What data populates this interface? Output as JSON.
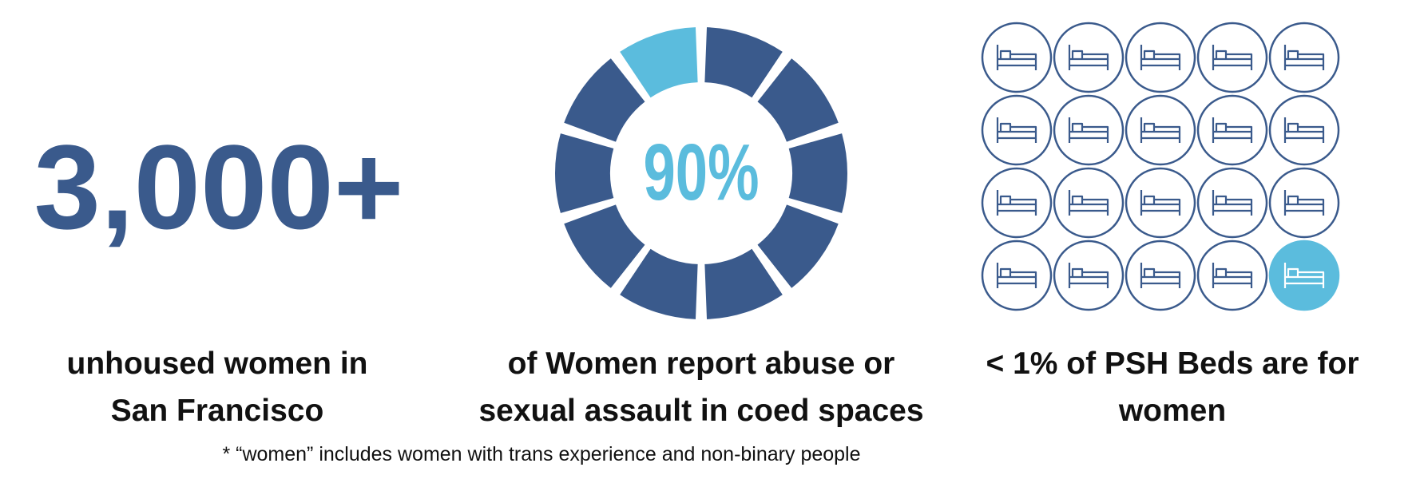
{
  "stats": [
    {
      "figure": "3,000+",
      "caption_lines": [
        "unhoused women in",
        "San Francisco"
      ]
    },
    {
      "figure": "90%",
      "caption_lines": [
        "of Women report abuse or",
        "sexual assault in coed spaces"
      ]
    },
    {
      "caption_lines": [
        "< 1% of PSH Beds are for",
        "women"
      ]
    }
  ],
  "footnote": "* “women” includes women with trans experience and non-binary people"
}
